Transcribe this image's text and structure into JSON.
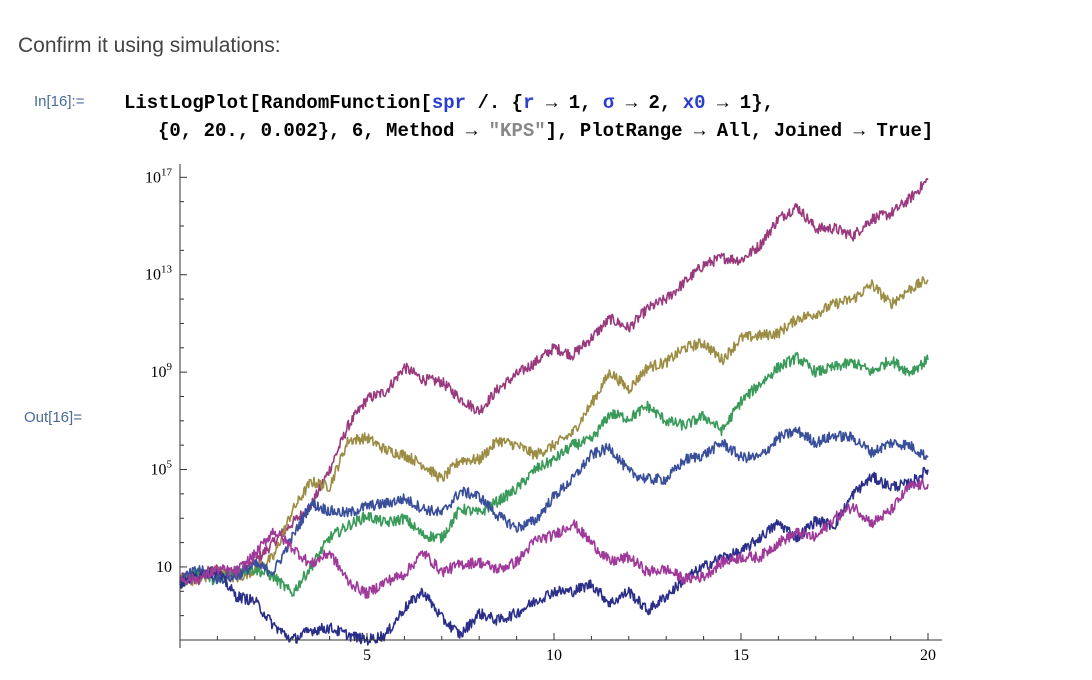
{
  "heading": "Confirm it using simulations:",
  "input_label": "In[16]:=",
  "output_label": "Out[16]=",
  "code": {
    "line1": {
      "p1": "ListLogPlot[RandomFunction[",
      "spr": "spr",
      "p2": " /. {",
      "r": "r",
      "p3": " → 1, ",
      "sigma": "σ",
      "p4": " → 2, ",
      "x0": "x0",
      "p5": " → 1},"
    },
    "line2": {
      "p1": "{0, 20., 0.002}, 6, Method → ",
      "str": "\"KPS\"",
      "p2": "], PlotRange → All, Joined → True]"
    }
  },
  "chart_data": {
    "type": "line",
    "log_y": true,
    "xlim": [
      0,
      20
    ],
    "ylim_log10": [
      -2,
      17.3
    ],
    "x_ticks": [
      5,
      10,
      15,
      20
    ],
    "x_tick_labels": [
      "5",
      "10",
      "15",
      "20"
    ],
    "y_ticks_log10": [
      1,
      5,
      9,
      13,
      17
    ],
    "y_tick_labels": [
      {
        "base": "10",
        "exp": ""
      },
      {
        "base": "10",
        "exp": "5"
      },
      {
        "base": "10",
        "exp": "9"
      },
      {
        "base": "10",
        "exp": "13"
      },
      {
        "base": "10",
        "exp": "17"
      }
    ],
    "series": [
      {
        "color": "#9a3a7e",
        "points": [
          [
            0,
            0.5
          ],
          [
            0.5,
            0.7
          ],
          [
            1,
            0.9
          ],
          [
            1.5,
            0.7
          ],
          [
            2,
            1.2
          ],
          [
            2.5,
            2.0
          ],
          [
            3,
            2.8
          ],
          [
            3.5,
            3.5
          ],
          [
            4,
            5.0
          ],
          [
            4.5,
            6.8
          ],
          [
            5,
            7.9
          ],
          [
            5.5,
            8.2
          ],
          [
            6,
            9.2
          ],
          [
            6.5,
            8.7
          ],
          [
            7,
            8.6
          ],
          [
            7.5,
            7.9
          ],
          [
            8,
            7.4
          ],
          [
            8.5,
            8.3
          ],
          [
            9,
            8.9
          ],
          [
            9.5,
            9.4
          ],
          [
            10,
            10.0
          ],
          [
            10.5,
            9.7
          ],
          [
            11,
            10.4
          ],
          [
            11.5,
            11.2
          ],
          [
            12,
            10.8
          ],
          [
            12.5,
            11.6
          ],
          [
            13,
            12.0
          ],
          [
            13.5,
            12.7
          ],
          [
            14,
            13.4
          ],
          [
            14.5,
            13.7
          ],
          [
            15,
            13.6
          ],
          [
            15.5,
            14.2
          ],
          [
            16,
            15.3
          ],
          [
            16.5,
            15.8
          ],
          [
            17,
            14.9
          ],
          [
            17.5,
            14.9
          ],
          [
            18,
            14.6
          ],
          [
            18.5,
            15.3
          ],
          [
            19,
            15.5
          ],
          [
            19.5,
            16.1
          ],
          [
            20,
            16.9
          ]
        ]
      },
      {
        "color": "#9c8d45",
        "points": [
          [
            0,
            0.6
          ],
          [
            0.5,
            0.4
          ],
          [
            1,
            0.9
          ],
          [
            1.5,
            0.5
          ],
          [
            2,
            0.9
          ],
          [
            2.5,
            1.4
          ],
          [
            3,
            3.3
          ],
          [
            3.5,
            4.5
          ],
          [
            4,
            4.3
          ],
          [
            4.5,
            6.2
          ],
          [
            5,
            6.3
          ],
          [
            5.5,
            5.8
          ],
          [
            6,
            5.6
          ],
          [
            6.5,
            5.2
          ],
          [
            7,
            4.6
          ],
          [
            7.5,
            5.4
          ],
          [
            8,
            5.4
          ],
          [
            8.5,
            6.2
          ],
          [
            9,
            6.0
          ],
          [
            9.5,
            5.6
          ],
          [
            10,
            6.0
          ],
          [
            10.5,
            6.5
          ],
          [
            11,
            7.7
          ],
          [
            11.5,
            9.0
          ],
          [
            12,
            8.3
          ],
          [
            12.5,
            9.2
          ],
          [
            13,
            9.4
          ],
          [
            13.5,
            10.0
          ],
          [
            14,
            10.2
          ],
          [
            14.5,
            9.5
          ],
          [
            15,
            10.4
          ],
          [
            15.5,
            10.5
          ],
          [
            16,
            10.6
          ],
          [
            16.5,
            11.2
          ],
          [
            17,
            11.4
          ],
          [
            17.5,
            11.8
          ],
          [
            18,
            12.0
          ],
          [
            18.5,
            12.6
          ],
          [
            19,
            11.8
          ],
          [
            19.5,
            12.4
          ],
          [
            20,
            12.8
          ]
        ]
      },
      {
        "color": "#3a9a5a",
        "points": [
          [
            0,
            0.3
          ],
          [
            0.5,
            0.8
          ],
          [
            1,
            0.4
          ],
          [
            1.5,
            0.9
          ],
          [
            2,
            0.9
          ],
          [
            2.5,
            0.6
          ],
          [
            3,
            -0.1
          ],
          [
            3.5,
            1.0
          ],
          [
            4,
            2.2
          ],
          [
            4.5,
            2.7
          ],
          [
            5,
            3.1
          ],
          [
            5.5,
            2.8
          ],
          [
            6,
            3.0
          ],
          [
            6.5,
            2.3
          ],
          [
            7,
            2.2
          ],
          [
            7.5,
            3.4
          ],
          [
            8,
            3.2
          ],
          [
            8.5,
            3.7
          ],
          [
            9,
            4.2
          ],
          [
            9.5,
            5.0
          ],
          [
            10,
            5.4
          ],
          [
            10.5,
            6.0
          ],
          [
            11,
            6.2
          ],
          [
            11.5,
            7.3
          ],
          [
            12,
            7.1
          ],
          [
            12.5,
            7.6
          ],
          [
            13,
            7.0
          ],
          [
            13.5,
            6.8
          ],
          [
            14,
            7.2
          ],
          [
            14.5,
            6.6
          ],
          [
            15,
            7.8
          ],
          [
            15.5,
            8.5
          ],
          [
            16,
            9.2
          ],
          [
            16.5,
            9.6
          ],
          [
            17,
            9.0
          ],
          [
            17.5,
            9.2
          ],
          [
            18,
            9.4
          ],
          [
            18.5,
            9.0
          ],
          [
            19,
            9.5
          ],
          [
            19.5,
            9.0
          ],
          [
            20,
            9.5
          ]
        ]
      },
      {
        "color": "#3a4f9a",
        "points": [
          [
            0,
            0.5
          ],
          [
            0.5,
            0.9
          ],
          [
            1,
            0.5
          ],
          [
            1.5,
            0.6
          ],
          [
            2,
            1.1
          ],
          [
            2.5,
            0.8
          ],
          [
            3,
            2.2
          ],
          [
            3.5,
            3.6
          ],
          [
            4,
            3.3
          ],
          [
            4.5,
            3.2
          ],
          [
            5,
            3.5
          ],
          [
            5.5,
            3.6
          ],
          [
            6,
            3.8
          ],
          [
            6.5,
            3.4
          ],
          [
            7,
            3.2
          ],
          [
            7.5,
            4.1
          ],
          [
            8,
            3.9
          ],
          [
            8.5,
            3.1
          ],
          [
            9,
            2.6
          ],
          [
            9.5,
            2.9
          ],
          [
            10,
            3.9
          ],
          [
            10.5,
            4.6
          ],
          [
            11,
            5.6
          ],
          [
            11.5,
            5.9
          ],
          [
            12,
            4.9
          ],
          [
            12.5,
            4.6
          ],
          [
            13,
            4.6
          ],
          [
            13.5,
            5.4
          ],
          [
            14,
            5.6
          ],
          [
            14.5,
            6.1
          ],
          [
            15,
            5.5
          ],
          [
            15.5,
            5.5
          ],
          [
            16,
            6.3
          ],
          [
            16.5,
            6.6
          ],
          [
            17,
            6.1
          ],
          [
            17.5,
            6.4
          ],
          [
            18,
            6.3
          ],
          [
            18.5,
            5.7
          ],
          [
            19,
            6.1
          ],
          [
            19.5,
            6.0
          ],
          [
            20,
            5.5
          ]
        ]
      },
      {
        "color": "#2b2f8a",
        "points": [
          [
            0,
            0.3
          ],
          [
            0.5,
            0.7
          ],
          [
            1,
            0.8
          ],
          [
            1.5,
            -0.2
          ],
          [
            2,
            -0.4
          ],
          [
            2.5,
            -1.4
          ],
          [
            3,
            -2.0
          ],
          [
            3.5,
            -1.6
          ],
          [
            4,
            -1.5
          ],
          [
            4.5,
            -1.8
          ],
          [
            5,
            -2.0
          ],
          [
            5.5,
            -1.8
          ],
          [
            6,
            -0.7
          ],
          [
            6.5,
            0.0
          ],
          [
            7,
            -1.1
          ],
          [
            7.5,
            -1.8
          ],
          [
            8,
            -0.9
          ],
          [
            8.5,
            -1.2
          ],
          [
            9,
            -0.9
          ],
          [
            9.5,
            -0.4
          ],
          [
            10,
            0.0
          ],
          [
            10.5,
            0.0
          ],
          [
            11,
            0.3
          ],
          [
            11.5,
            -0.5
          ],
          [
            12,
            0.0
          ],
          [
            12.5,
            -0.8
          ],
          [
            13,
            -0.2
          ],
          [
            13.5,
            0.5
          ],
          [
            14,
            1.0
          ],
          [
            14.5,
            1.4
          ],
          [
            15,
            1.6
          ],
          [
            15.5,
            2.2
          ],
          [
            16,
            2.8
          ],
          [
            16.5,
            2.2
          ],
          [
            17,
            2.9
          ],
          [
            17.5,
            2.7
          ],
          [
            18,
            4.0
          ],
          [
            18.5,
            4.7
          ],
          [
            19,
            4.3
          ],
          [
            19.5,
            4.4
          ],
          [
            20,
            5.0
          ]
        ]
      },
      {
        "color": "#a03a9a",
        "points": [
          [
            0,
            0.5
          ],
          [
            0.5,
            0.5
          ],
          [
            1,
            0.9
          ],
          [
            1.5,
            0.8
          ],
          [
            2,
            1.5
          ],
          [
            2.5,
            2.5
          ],
          [
            3,
            1.8
          ],
          [
            3.5,
            1.1
          ],
          [
            4,
            1.6
          ],
          [
            4.5,
            0.4
          ],
          [
            5,
            -0.1
          ],
          [
            5.5,
            0.4
          ],
          [
            6,
            0.7
          ],
          [
            6.5,
            1.6
          ],
          [
            7,
            0.8
          ],
          [
            7.5,
            1.1
          ],
          [
            8,
            1.2
          ],
          [
            8.5,
            0.9
          ],
          [
            9,
            1.2
          ],
          [
            9.5,
            2.1
          ],
          [
            10,
            2.3
          ],
          [
            10.5,
            2.8
          ],
          [
            11,
            2.0
          ],
          [
            11.5,
            1.2
          ],
          [
            12,
            1.4
          ],
          [
            12.5,
            0.8
          ],
          [
            13,
            0.9
          ],
          [
            13.5,
            0.5
          ],
          [
            14,
            0.6
          ],
          [
            14.5,
            1.2
          ],
          [
            15,
            1.4
          ],
          [
            15.5,
            1.4
          ],
          [
            16,
            2.0
          ],
          [
            16.5,
            2.4
          ],
          [
            17,
            2.2
          ],
          [
            17.5,
            3.0
          ],
          [
            18,
            3.5
          ],
          [
            18.5,
            2.8
          ],
          [
            19,
            3.3
          ],
          [
            19.5,
            4.3
          ],
          [
            20,
            4.4
          ]
        ]
      }
    ]
  }
}
